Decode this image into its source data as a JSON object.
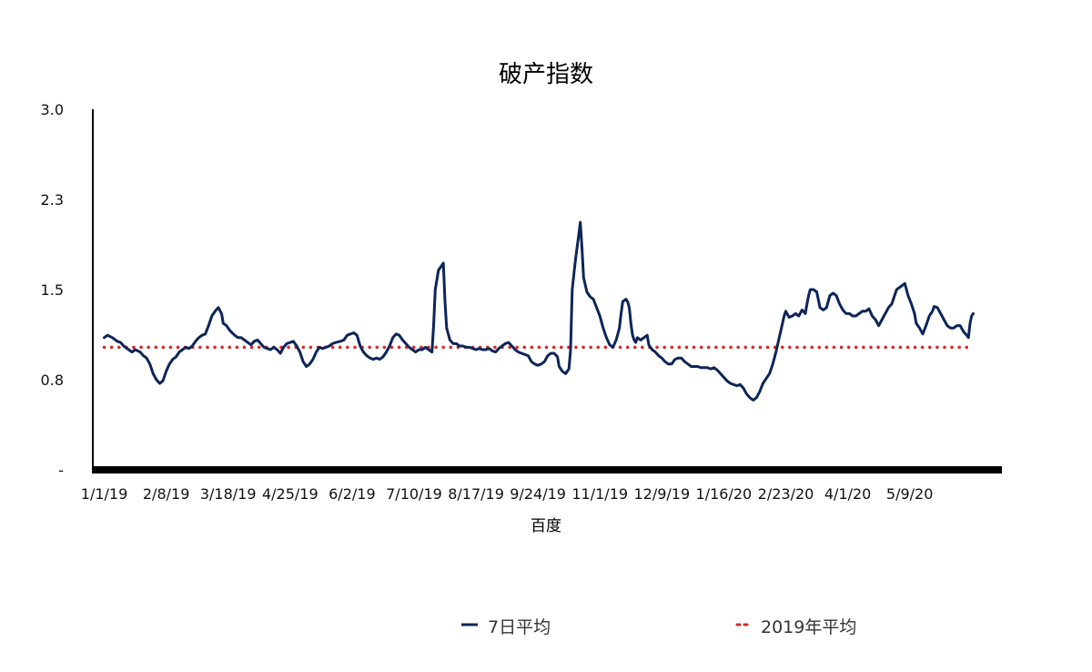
{
  "chart_data": {
    "type": "line",
    "title": "破产指数",
    "xlabel": "百度",
    "ylabel": "",
    "ylim": [
      0,
      3.0
    ],
    "y_ticks": [
      {
        "value": 0,
        "label": "-"
      },
      {
        "value": 0.75,
        "label": "0.8"
      },
      {
        "value": 1.5,
        "label": "1.5"
      },
      {
        "value": 2.25,
        "label": "2.3"
      },
      {
        "value": 3.0,
        "label": "3.0"
      }
    ],
    "x_tick_labels": [
      "1/1/19",
      "2/8/19",
      "3/18/19",
      "4/25/19",
      "6/2/19",
      "7/10/19",
      "8/17/19",
      "9/24/19",
      "11/1/19",
      "12/9/19",
      "1/16/20",
      "2/23/20",
      "4/1/20",
      "5/9/20"
    ],
    "x_tick_days": [
      0,
      38,
      76,
      114,
      152,
      190,
      228,
      266,
      304,
      342,
      380,
      418,
      456,
      494
    ],
    "x_range_days": [
      -7,
      550
    ],
    "legend_position": "bottom",
    "series": [
      {
        "name": "7日平均",
        "color": "#0d2559",
        "style": "solid",
        "points": [
          [
            0,
            1.1
          ],
          [
            2,
            1.12
          ],
          [
            5,
            1.1
          ],
          [
            8,
            1.07
          ],
          [
            10,
            1.06
          ],
          [
            12,
            1.03
          ],
          [
            15,
            1.0
          ],
          [
            17,
            0.98
          ],
          [
            19,
            1.0
          ],
          [
            22,
            0.98
          ],
          [
            24,
            0.95
          ],
          [
            26,
            0.93
          ],
          [
            28,
            0.88
          ],
          [
            30,
            0.8
          ],
          [
            32,
            0.75
          ],
          [
            34,
            0.72
          ],
          [
            36,
            0.74
          ],
          [
            38,
            0.82
          ],
          [
            40,
            0.88
          ],
          [
            42,
            0.92
          ],
          [
            44,
            0.94
          ],
          [
            46,
            0.98
          ],
          [
            48,
            1.0
          ],
          [
            50,
            1.02
          ],
          [
            52,
            1.01
          ],
          [
            54,
            1.03
          ],
          [
            56,
            1.07
          ],
          [
            58,
            1.1
          ],
          [
            60,
            1.12
          ],
          [
            62,
            1.13
          ],
          [
            64,
            1.2
          ],
          [
            66,
            1.28
          ],
          [
            68,
            1.32
          ],
          [
            70,
            1.35
          ],
          [
            72,
            1.3
          ],
          [
            73,
            1.22
          ],
          [
            75,
            1.2
          ],
          [
            77,
            1.16
          ],
          [
            80,
            1.12
          ],
          [
            82,
            1.1
          ],
          [
            84,
            1.1
          ],
          [
            86,
            1.08
          ],
          [
            88,
            1.06
          ],
          [
            90,
            1.04
          ],
          [
            92,
            1.07
          ],
          [
            94,
            1.08
          ],
          [
            96,
            1.05
          ],
          [
            98,
            1.02
          ],
          [
            100,
            1.01
          ],
          [
            102,
            1.0
          ],
          [
            104,
            1.02
          ],
          [
            106,
            1.0
          ],
          [
            108,
            0.97
          ],
          [
            110,
            1.02
          ],
          [
            112,
            1.05
          ],
          [
            114,
            1.06
          ],
          [
            116,
            1.07
          ],
          [
            118,
            1.03
          ],
          [
            120,
            0.98
          ],
          [
            122,
            0.9
          ],
          [
            124,
            0.86
          ],
          [
            126,
            0.88
          ],
          [
            128,
            0.92
          ],
          [
            130,
            0.98
          ],
          [
            132,
            1.02
          ],
          [
            134,
            1.01
          ],
          [
            136,
            1.02
          ],
          [
            138,
            1.03
          ],
          [
            140,
            1.05
          ],
          [
            142,
            1.06
          ],
          [
            145,
            1.07
          ],
          [
            147,
            1.08
          ],
          [
            149,
            1.12
          ],
          [
            151,
            1.13
          ],
          [
            153,
            1.14
          ],
          [
            155,
            1.12
          ],
          [
            157,
            1.03
          ],
          [
            159,
            0.98
          ],
          [
            161,
            0.95
          ],
          [
            163,
            0.93
          ],
          [
            165,
            0.92
          ],
          [
            167,
            0.93
          ],
          [
            169,
            0.92
          ],
          [
            171,
            0.94
          ],
          [
            173,
            0.98
          ],
          [
            175,
            1.03
          ],
          [
            177,
            1.1
          ],
          [
            179,
            1.13
          ],
          [
            181,
            1.12
          ],
          [
            183,
            1.08
          ],
          [
            185,
            1.05
          ],
          [
            187,
            1.02
          ],
          [
            189,
            1.0
          ],
          [
            191,
            0.98
          ],
          [
            193,
            1.0
          ],
          [
            195,
            1.0
          ],
          [
            197,
            1.02
          ],
          [
            199,
            1.0
          ],
          [
            201,
            0.98
          ],
          [
            202,
            1.2
          ],
          [
            203,
            1.5
          ],
          [
            205,
            1.66
          ],
          [
            207,
            1.7
          ],
          [
            208,
            1.72
          ],
          [
            209,
            1.4
          ],
          [
            210,
            1.18
          ],
          [
            212,
            1.08
          ],
          [
            214,
            1.05
          ],
          [
            216,
            1.05
          ],
          [
            218,
            1.03
          ],
          [
            220,
            1.03
          ],
          [
            222,
            1.02
          ],
          [
            224,
            1.02
          ],
          [
            226,
            1.01
          ],
          [
            228,
            1.0
          ],
          [
            230,
            1.01
          ],
          [
            232,
            1.0
          ],
          [
            234,
            1.0
          ],
          [
            236,
            1.01
          ],
          [
            238,
            0.99
          ],
          [
            240,
            0.98
          ],
          [
            242,
            1.01
          ],
          [
            244,
            1.03
          ],
          [
            246,
            1.05
          ],
          [
            248,
            1.06
          ],
          [
            250,
            1.03
          ],
          [
            252,
            1.0
          ],
          [
            254,
            0.98
          ],
          [
            256,
            0.97
          ],
          [
            258,
            0.96
          ],
          [
            260,
            0.95
          ],
          [
            262,
            0.9
          ],
          [
            264,
            0.88
          ],
          [
            266,
            0.87
          ],
          [
            268,
            0.88
          ],
          [
            270,
            0.9
          ],
          [
            272,
            0.95
          ],
          [
            274,
            0.97
          ],
          [
            276,
            0.97
          ],
          [
            278,
            0.94
          ],
          [
            279,
            0.86
          ],
          [
            281,
            0.82
          ],
          [
            283,
            0.8
          ],
          [
            285,
            0.84
          ],
          [
            286,
            1.0
          ],
          [
            287,
            1.5
          ],
          [
            289,
            1.75
          ],
          [
            291,
            1.95
          ],
          [
            292,
            2.06
          ],
          [
            293,
            1.85
          ],
          [
            294,
            1.6
          ],
          [
            296,
            1.48
          ],
          [
            298,
            1.44
          ],
          [
            300,
            1.42
          ],
          [
            302,
            1.35
          ],
          [
            304,
            1.28
          ],
          [
            306,
            1.18
          ],
          [
            308,
            1.1
          ],
          [
            310,
            1.04
          ],
          [
            312,
            1.02
          ],
          [
            314,
            1.08
          ],
          [
            316,
            1.18
          ],
          [
            317,
            1.3
          ],
          [
            318,
            1.4
          ],
          [
            320,
            1.42
          ],
          [
            321,
            1.4
          ],
          [
            322,
            1.35
          ],
          [
            323,
            1.22
          ],
          [
            324,
            1.12
          ],
          [
            325,
            1.08
          ],
          [
            326,
            1.06
          ],
          [
            327,
            1.1
          ],
          [
            329,
            1.08
          ],
          [
            331,
            1.1
          ],
          [
            333,
            1.12
          ],
          [
            334,
            1.04
          ],
          [
            336,
            1.0
          ],
          [
            338,
            0.98
          ],
          [
            340,
            0.95
          ],
          [
            342,
            0.93
          ],
          [
            344,
            0.9
          ],
          [
            346,
            0.88
          ],
          [
            348,
            0.88
          ],
          [
            350,
            0.92
          ],
          [
            352,
            0.93
          ],
          [
            354,
            0.93
          ],
          [
            356,
            0.9
          ],
          [
            358,
            0.88
          ],
          [
            360,
            0.86
          ],
          [
            362,
            0.86
          ],
          [
            364,
            0.86
          ],
          [
            366,
            0.85
          ],
          [
            368,
            0.85
          ],
          [
            370,
            0.85
          ],
          [
            372,
            0.84
          ],
          [
            374,
            0.85
          ],
          [
            376,
            0.83
          ],
          [
            378,
            0.8
          ],
          [
            380,
            0.77
          ],
          [
            382,
            0.74
          ],
          [
            384,
            0.72
          ],
          [
            386,
            0.71
          ],
          [
            388,
            0.7
          ],
          [
            390,
            0.71
          ],
          [
            392,
            0.68
          ],
          [
            394,
            0.63
          ],
          [
            396,
            0.6
          ],
          [
            398,
            0.58
          ],
          [
            400,
            0.6
          ],
          [
            402,
            0.65
          ],
          [
            404,
            0.72
          ],
          [
            406,
            0.76
          ],
          [
            408,
            0.8
          ],
          [
            410,
            0.88
          ],
          [
            412,
            0.98
          ],
          [
            414,
            1.1
          ],
          [
            416,
            1.22
          ],
          [
            417,
            1.28
          ],
          [
            418,
            1.32
          ],
          [
            420,
            1.27
          ],
          [
            422,
            1.28
          ],
          [
            424,
            1.3
          ],
          [
            426,
            1.28
          ],
          [
            428,
            1.33
          ],
          [
            430,
            1.3
          ],
          [
            431,
            1.38
          ],
          [
            432,
            1.45
          ],
          [
            433,
            1.5
          ],
          [
            435,
            1.5
          ],
          [
            437,
            1.48
          ],
          [
            439,
            1.35
          ],
          [
            441,
            1.33
          ],
          [
            443,
            1.35
          ],
          [
            445,
            1.45
          ],
          [
            447,
            1.47
          ],
          [
            449,
            1.45
          ],
          [
            451,
            1.38
          ],
          [
            453,
            1.33
          ],
          [
            455,
            1.3
          ],
          [
            457,
            1.3
          ],
          [
            459,
            1.28
          ],
          [
            461,
            1.28
          ],
          [
            463,
            1.3
          ],
          [
            465,
            1.32
          ],
          [
            467,
            1.32
          ],
          [
            469,
            1.34
          ],
          [
            471,
            1.28
          ],
          [
            473,
            1.25
          ],
          [
            475,
            1.2
          ],
          [
            477,
            1.25
          ],
          [
            479,
            1.3
          ],
          [
            481,
            1.35
          ],
          [
            483,
            1.38
          ],
          [
            484,
            1.42
          ],
          [
            485,
            1.46
          ],
          [
            486,
            1.5
          ],
          [
            488,
            1.52
          ],
          [
            490,
            1.54
          ],
          [
            491,
            1.55
          ],
          [
            493,
            1.45
          ],
          [
            495,
            1.38
          ],
          [
            497,
            1.3
          ],
          [
            498,
            1.22
          ],
          [
            500,
            1.18
          ],
          [
            502,
            1.13
          ],
          [
            504,
            1.2
          ],
          [
            506,
            1.28
          ],
          [
            508,
            1.32
          ],
          [
            509,
            1.36
          ],
          [
            511,
            1.35
          ],
          [
            513,
            1.3
          ],
          [
            515,
            1.25
          ],
          [
            517,
            1.2
          ],
          [
            519,
            1.18
          ],
          [
            521,
            1.18
          ],
          [
            523,
            1.2
          ],
          [
            525,
            1.2
          ],
          [
            527,
            1.15
          ],
          [
            529,
            1.12
          ],
          [
            530,
            1.1
          ],
          [
            531,
            1.22
          ],
          [
            532,
            1.28
          ],
          [
            533,
            1.3
          ]
        ]
      },
      {
        "name": "2019年平均",
        "color": "#d42a2a",
        "style": "dotted",
        "points": [
          [
            0,
            1.02
          ],
          [
            533,
            1.02
          ]
        ]
      }
    ]
  }
}
